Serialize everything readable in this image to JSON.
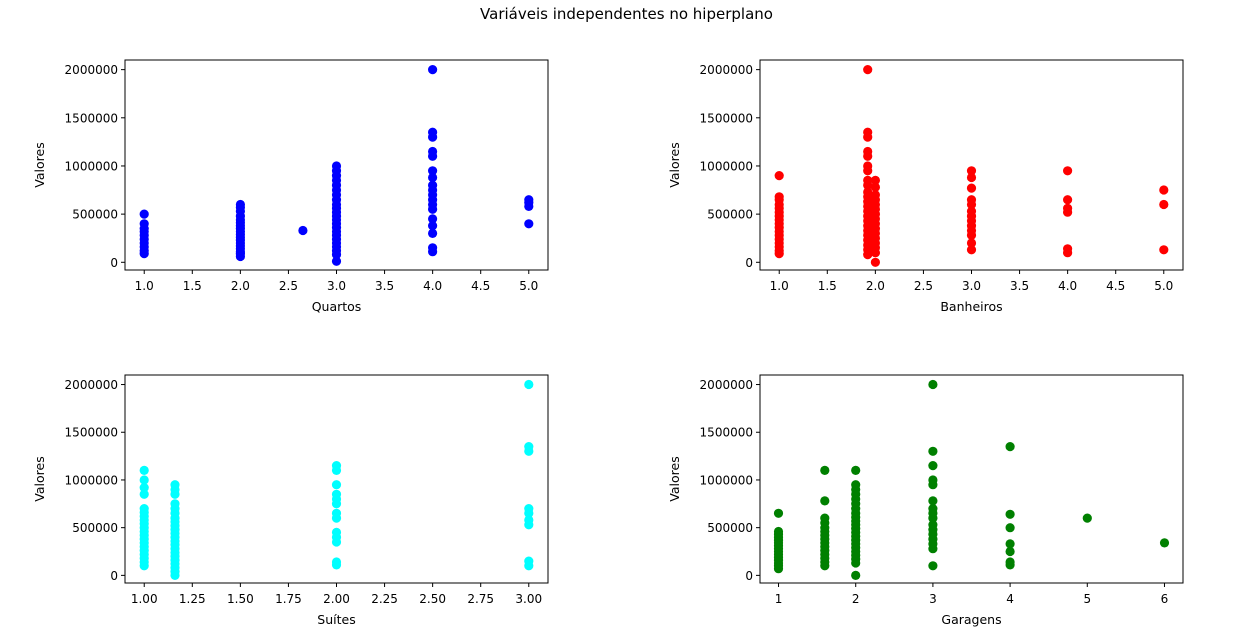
{
  "figure_title": "Variáveis independentes no hiperplano",
  "chart_data": [
    {
      "type": "scatter",
      "xlabel": "Quartos",
      "ylabel": "Valores",
      "color": "#0000ff",
      "xlim": [
        0.8,
        5.2
      ],
      "ylim": [
        -80000,
        2100000
      ],
      "xticks": [
        1.0,
        1.5,
        2.0,
        2.5,
        3.0,
        3.5,
        4.0,
        4.5,
        5.0
      ],
      "xtick_labels": [
        "1.0",
        "1.5",
        "2.0",
        "2.5",
        "3.0",
        "3.5",
        "4.0",
        "4.5",
        "5.0"
      ],
      "yticks": [
        0,
        500000,
        1000000,
        1500000,
        2000000
      ],
      "ytick_labels": [
        "0",
        "500000",
        "1000000",
        "1500000",
        "2000000"
      ],
      "grid": false,
      "points": [
        [
          1,
          90000
        ],
        [
          1,
          120000
        ],
        [
          1,
          160000
        ],
        [
          1,
          200000
        ],
        [
          1,
          240000
        ],
        [
          1,
          280000
        ],
        [
          1,
          320000
        ],
        [
          1,
          350000
        ],
        [
          1,
          400000
        ],
        [
          1,
          500000
        ],
        [
          2,
          60000
        ],
        [
          2,
          90000
        ],
        [
          2,
          110000
        ],
        [
          2,
          140000
        ],
        [
          2,
          170000
        ],
        [
          2,
          200000
        ],
        [
          2,
          230000
        ],
        [
          2,
          260000
        ],
        [
          2,
          290000
        ],
        [
          2,
          320000
        ],
        [
          2,
          350000
        ],
        [
          2,
          380000
        ],
        [
          2,
          410000
        ],
        [
          2,
          440000
        ],
        [
          2,
          480000
        ],
        [
          2,
          530000
        ],
        [
          2,
          570000
        ],
        [
          2,
          600000
        ],
        [
          2.65,
          330000
        ],
        [
          3,
          10000
        ],
        [
          3,
          80000
        ],
        [
          3,
          120000
        ],
        [
          3,
          160000
        ],
        [
          3,
          200000
        ],
        [
          3,
          240000
        ],
        [
          3,
          280000
        ],
        [
          3,
          320000
        ],
        [
          3,
          360000
        ],
        [
          3,
          400000
        ],
        [
          3,
          440000
        ],
        [
          3,
          480000
        ],
        [
          3,
          520000
        ],
        [
          3,
          560000
        ],
        [
          3,
          600000
        ],
        [
          3,
          650000
        ],
        [
          3,
          700000
        ],
        [
          3,
          750000
        ],
        [
          3,
          800000
        ],
        [
          3,
          850000
        ],
        [
          3,
          900000
        ],
        [
          3,
          950000
        ],
        [
          3,
          1000000
        ],
        [
          4,
          110000
        ],
        [
          4,
          150000
        ],
        [
          4,
          300000
        ],
        [
          4,
          380000
        ],
        [
          4,
          450000
        ],
        [
          4,
          550000
        ],
        [
          4,
          600000
        ],
        [
          4,
          650000
        ],
        [
          4,
          700000
        ],
        [
          4,
          750000
        ],
        [
          4,
          800000
        ],
        [
          4,
          880000
        ],
        [
          4,
          950000
        ],
        [
          4,
          1100000
        ],
        [
          4,
          1150000
        ],
        [
          4,
          1300000
        ],
        [
          4,
          1350000
        ],
        [
          4,
          2000000
        ],
        [
          5,
          400000
        ],
        [
          5,
          580000
        ],
        [
          5,
          620000
        ],
        [
          5,
          650000
        ]
      ]
    },
    {
      "type": "scatter",
      "xlabel": "Banheiros",
      "ylabel": "Valores",
      "color": "#ff0000",
      "xlim": [
        0.8,
        5.2
      ],
      "ylim": [
        -80000,
        2100000
      ],
      "xticks": [
        1.0,
        1.5,
        2.0,
        2.5,
        3.0,
        3.5,
        4.0,
        4.5,
        5.0
      ],
      "xtick_labels": [
        "1.0",
        "1.5",
        "2.0",
        "2.5",
        "3.0",
        "3.5",
        "4.0",
        "4.5",
        "5.0"
      ],
      "yticks": [
        0,
        500000,
        1000000,
        1500000,
        2000000
      ],
      "ytick_labels": [
        "0",
        "500000",
        "1000000",
        "1500000",
        "2000000"
      ],
      "grid": false,
      "points": [
        [
          1,
          90000
        ],
        [
          1,
          120000
        ],
        [
          1,
          160000
        ],
        [
          1,
          200000
        ],
        [
          1,
          240000
        ],
        [
          1,
          280000
        ],
        [
          1,
          320000
        ],
        [
          1,
          360000
        ],
        [
          1,
          400000
        ],
        [
          1,
          440000
        ],
        [
          1,
          480000
        ],
        [
          1,
          520000
        ],
        [
          1,
          560000
        ],
        [
          1,
          600000
        ],
        [
          1,
          650000
        ],
        [
          1,
          680000
        ],
        [
          1,
          900000
        ],
        [
          1.92,
          80000
        ],
        [
          1.92,
          130000
        ],
        [
          1.92,
          180000
        ],
        [
          1.92,
          230000
        ],
        [
          1.92,
          280000
        ],
        [
          1.92,
          330000
        ],
        [
          1.92,
          380000
        ],
        [
          1.92,
          430000
        ],
        [
          1.92,
          480000
        ],
        [
          1.92,
          530000
        ],
        [
          1.92,
          580000
        ],
        [
          1.92,
          630000
        ],
        [
          1.92,
          680000
        ],
        [
          1.92,
          730000
        ],
        [
          1.92,
          800000
        ],
        [
          1.92,
          850000
        ],
        [
          1.92,
          950000
        ],
        [
          1.92,
          1000000
        ],
        [
          1.92,
          1100000
        ],
        [
          1.92,
          1150000
        ],
        [
          1.92,
          1300000
        ],
        [
          1.92,
          1350000
        ],
        [
          1.92,
          2000000
        ],
        [
          2,
          0
        ],
        [
          2,
          100000
        ],
        [
          2,
          150000
        ],
        [
          2,
          200000
        ],
        [
          2,
          250000
        ],
        [
          2,
          300000
        ],
        [
          2,
          350000
        ],
        [
          2,
          400000
        ],
        [
          2,
          450000
        ],
        [
          2,
          500000
        ],
        [
          2,
          550000
        ],
        [
          2,
          600000
        ],
        [
          2,
          650000
        ],
        [
          2,
          700000
        ],
        [
          2,
          780000
        ],
        [
          2,
          850000
        ],
        [
          3,
          130000
        ],
        [
          3,
          200000
        ],
        [
          3,
          280000
        ],
        [
          3,
          330000
        ],
        [
          3,
          380000
        ],
        [
          3,
          430000
        ],
        [
          3,
          480000
        ],
        [
          3,
          530000
        ],
        [
          3,
          600000
        ],
        [
          3,
          650000
        ],
        [
          3,
          770000
        ],
        [
          3,
          880000
        ],
        [
          3,
          950000
        ],
        [
          4,
          100000
        ],
        [
          4,
          140000
        ],
        [
          4,
          520000
        ],
        [
          4,
          560000
        ],
        [
          4,
          650000
        ],
        [
          4,
          950000
        ],
        [
          5,
          130000
        ],
        [
          5,
          600000
        ],
        [
          5,
          750000
        ]
      ]
    },
    {
      "type": "scatter",
      "xlabel": "Suítes",
      "ylabel": "Valores",
      "color": "#00ffff",
      "xlim": [
        0.9,
        3.1
      ],
      "ylim": [
        -80000,
        2100000
      ],
      "xticks": [
        1.0,
        1.25,
        1.5,
        1.75,
        2.0,
        2.25,
        2.5,
        2.75,
        3.0
      ],
      "xtick_labels": [
        "1.00",
        "1.25",
        "1.50",
        "1.75",
        "2.00",
        "2.25",
        "2.50",
        "2.75",
        "3.00"
      ],
      "yticks": [
        0,
        500000,
        1000000,
        1500000,
        2000000
      ],
      "ytick_labels": [
        "0",
        "500000",
        "1000000",
        "1500000",
        "2000000"
      ],
      "grid": false,
      "points": [
        [
          1,
          100000
        ],
        [
          1,
          140000
        ],
        [
          1,
          180000
        ],
        [
          1,
          220000
        ],
        [
          1,
          260000
        ],
        [
          1,
          300000
        ],
        [
          1,
          340000
        ],
        [
          1,
          380000
        ],
        [
          1,
          420000
        ],
        [
          1,
          460000
        ],
        [
          1,
          500000
        ],
        [
          1,
          540000
        ],
        [
          1,
          580000
        ],
        [
          1,
          620000
        ],
        [
          1,
          660000
        ],
        [
          1,
          700000
        ],
        [
          1,
          850000
        ],
        [
          1,
          920000
        ],
        [
          1,
          1000000
        ],
        [
          1,
          1100000
        ],
        [
          1.16,
          0
        ],
        [
          1.16,
          40000
        ],
        [
          1.16,
          80000
        ],
        [
          1.16,
          120000
        ],
        [
          1.16,
          160000
        ],
        [
          1.16,
          200000
        ],
        [
          1.16,
          240000
        ],
        [
          1.16,
          280000
        ],
        [
          1.16,
          320000
        ],
        [
          1.16,
          360000
        ],
        [
          1.16,
          400000
        ],
        [
          1.16,
          440000
        ],
        [
          1.16,
          480000
        ],
        [
          1.16,
          520000
        ],
        [
          1.16,
          560000
        ],
        [
          1.16,
          600000
        ],
        [
          1.16,
          650000
        ],
        [
          1.16,
          700000
        ],
        [
          1.16,
          750000
        ],
        [
          1.16,
          850000
        ],
        [
          1.16,
          900000
        ],
        [
          1.16,
          950000
        ],
        [
          2,
          110000
        ],
        [
          2,
          140000
        ],
        [
          2,
          350000
        ],
        [
          2,
          400000
        ],
        [
          2,
          450000
        ],
        [
          2,
          600000
        ],
        [
          2,
          650000
        ],
        [
          2,
          750000
        ],
        [
          2,
          800000
        ],
        [
          2,
          850000
        ],
        [
          2,
          950000
        ],
        [
          2,
          1100000
        ],
        [
          2,
          1150000
        ],
        [
          3,
          100000
        ],
        [
          3,
          150000
        ],
        [
          3,
          530000
        ],
        [
          3,
          580000
        ],
        [
          3,
          650000
        ],
        [
          3,
          700000
        ],
        [
          3,
          1300000
        ],
        [
          3,
          1350000
        ],
        [
          3,
          2000000
        ]
      ]
    },
    {
      "type": "scatter",
      "xlabel": "Garagens",
      "ylabel": "Valores",
      "color": "#008000",
      "xlim": [
        0.76,
        6.24
      ],
      "ylim": [
        -80000,
        2100000
      ],
      "xticks": [
        1,
        2,
        3,
        4,
        5,
        6
      ],
      "xtick_labels": [
        "1",
        "2",
        "3",
        "4",
        "5",
        "6"
      ],
      "yticks": [
        0,
        500000,
        1000000,
        1500000,
        2000000
      ],
      "ytick_labels": [
        "0",
        "500000",
        "1000000",
        "1500000",
        "2000000"
      ],
      "grid": false,
      "points": [
        [
          1,
          70000
        ],
        [
          1,
          100000
        ],
        [
          1,
          130000
        ],
        [
          1,
          160000
        ],
        [
          1,
          190000
        ],
        [
          1,
          220000
        ],
        [
          1,
          250000
        ],
        [
          1,
          280000
        ],
        [
          1,
          310000
        ],
        [
          1,
          340000
        ],
        [
          1,
          370000
        ],
        [
          1,
          400000
        ],
        [
          1,
          430000
        ],
        [
          1,
          460000
        ],
        [
          1,
          650000
        ],
        [
          1.6,
          100000
        ],
        [
          1.6,
          140000
        ],
        [
          1.6,
          180000
        ],
        [
          1.6,
          220000
        ],
        [
          1.6,
          260000
        ],
        [
          1.6,
          300000
        ],
        [
          1.6,
          340000
        ],
        [
          1.6,
          380000
        ],
        [
          1.6,
          420000
        ],
        [
          1.6,
          460000
        ],
        [
          1.6,
          500000
        ],
        [
          1.6,
          550000
        ],
        [
          1.6,
          600000
        ],
        [
          1.6,
          780000
        ],
        [
          1.6,
          1100000
        ],
        [
          2,
          0
        ],
        [
          2,
          130000
        ],
        [
          2,
          170000
        ],
        [
          2,
          210000
        ],
        [
          2,
          250000
        ],
        [
          2,
          290000
        ],
        [
          2,
          330000
        ],
        [
          2,
          370000
        ],
        [
          2,
          410000
        ],
        [
          2,
          450000
        ],
        [
          2,
          490000
        ],
        [
          2,
          530000
        ],
        [
          2,
          570000
        ],
        [
          2,
          610000
        ],
        [
          2,
          650000
        ],
        [
          2,
          700000
        ],
        [
          2,
          750000
        ],
        [
          2,
          800000
        ],
        [
          2,
          850000
        ],
        [
          2,
          900000
        ],
        [
          2,
          950000
        ],
        [
          2,
          1100000
        ],
        [
          3,
          100000
        ],
        [
          3,
          280000
        ],
        [
          3,
          330000
        ],
        [
          3,
          380000
        ],
        [
          3,
          430000
        ],
        [
          3,
          480000
        ],
        [
          3,
          530000
        ],
        [
          3,
          600000
        ],
        [
          3,
          650000
        ],
        [
          3,
          700000
        ],
        [
          3,
          780000
        ],
        [
          3,
          950000
        ],
        [
          3,
          1000000
        ],
        [
          3,
          1150000
        ],
        [
          3,
          1300000
        ],
        [
          3,
          2000000
        ],
        [
          4,
          110000
        ],
        [
          4,
          140000
        ],
        [
          4,
          250000
        ],
        [
          4,
          330000
        ],
        [
          4,
          500000
        ],
        [
          4,
          640000
        ],
        [
          4,
          1350000
        ],
        [
          5,
          600000
        ],
        [
          6,
          340000
        ]
      ]
    }
  ]
}
